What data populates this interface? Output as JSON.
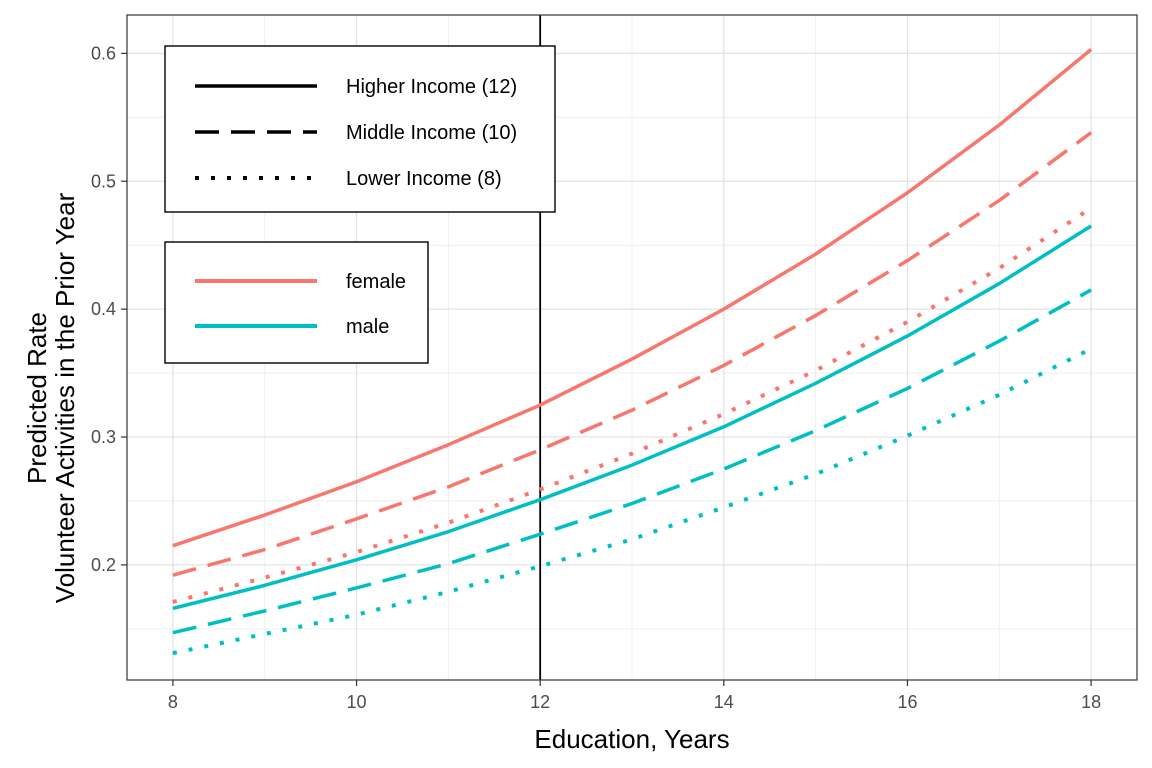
{
  "chart_data": {
    "type": "line",
    "xlabel": "Education, Years",
    "ylabel_lines": [
      "Predicted Rate",
      "Volunteer Activities in the Prior Year"
    ],
    "xlim": [
      7.5,
      18.5
    ],
    "ylim": [
      0.11,
      0.63
    ],
    "x_ticks": [
      8,
      10,
      12,
      14,
      16,
      18
    ],
    "y_ticks": [
      0.2,
      0.3,
      0.4,
      0.5,
      0.6
    ],
    "x_tick_labels": [
      "8",
      "10",
      "12",
      "14",
      "16",
      "18"
    ],
    "y_tick_labels": [
      "0.2",
      "0.3",
      "0.4",
      "0.5",
      "0.6"
    ],
    "grid": true,
    "reference_line_x": 12,
    "x": [
      8,
      9,
      10,
      11,
      12,
      13,
      14,
      15,
      16,
      17,
      18
    ],
    "colors": {
      "female": "#F8766D",
      "male": "#00BFC4"
    },
    "series": [
      {
        "sex": "female",
        "income": "high",
        "values": [
          0.215,
          0.239,
          0.265,
          0.294,
          0.325,
          0.361,
          0.4,
          0.443,
          0.491,
          0.544,
          0.603
        ]
      },
      {
        "sex": "female",
        "income": "middle",
        "values": [
          0.192,
          0.212,
          0.236,
          0.261,
          0.29,
          0.321,
          0.356,
          0.395,
          0.438,
          0.485,
          0.538
        ]
      },
      {
        "sex": "female",
        "income": "lower",
        "values": [
          0.171,
          0.19,
          0.21,
          0.233,
          0.259,
          0.287,
          0.318,
          0.352,
          0.39,
          0.432,
          0.479
        ]
      },
      {
        "sex": "male",
        "income": "high",
        "values": [
          0.166,
          0.184,
          0.204,
          0.226,
          0.251,
          0.278,
          0.308,
          0.342,
          0.379,
          0.42,
          0.465
        ]
      },
      {
        "sex": "male",
        "income": "middle",
        "values": [
          0.147,
          0.164,
          0.182,
          0.201,
          0.224,
          0.248,
          0.275,
          0.305,
          0.338,
          0.375,
          0.415
        ]
      },
      {
        "sex": "male",
        "income": "lower",
        "values": [
          0.131,
          0.146,
          0.161,
          0.179,
          0.199,
          0.22,
          0.245,
          0.271,
          0.301,
          0.333,
          0.369
        ]
      }
    ],
    "legend_linetype": {
      "placement": "top-left",
      "entries": [
        {
          "key": "high",
          "label": "Higher Income (12)"
        },
        {
          "key": "middle",
          "label": "Middle Income (10)"
        },
        {
          "key": "lower",
          "label": "Lower Income (8)"
        }
      ]
    },
    "legend_color": {
      "placement": "top-left",
      "entries": [
        {
          "key": "female",
          "label": "female"
        },
        {
          "key": "male",
          "label": "male"
        }
      ]
    }
  }
}
